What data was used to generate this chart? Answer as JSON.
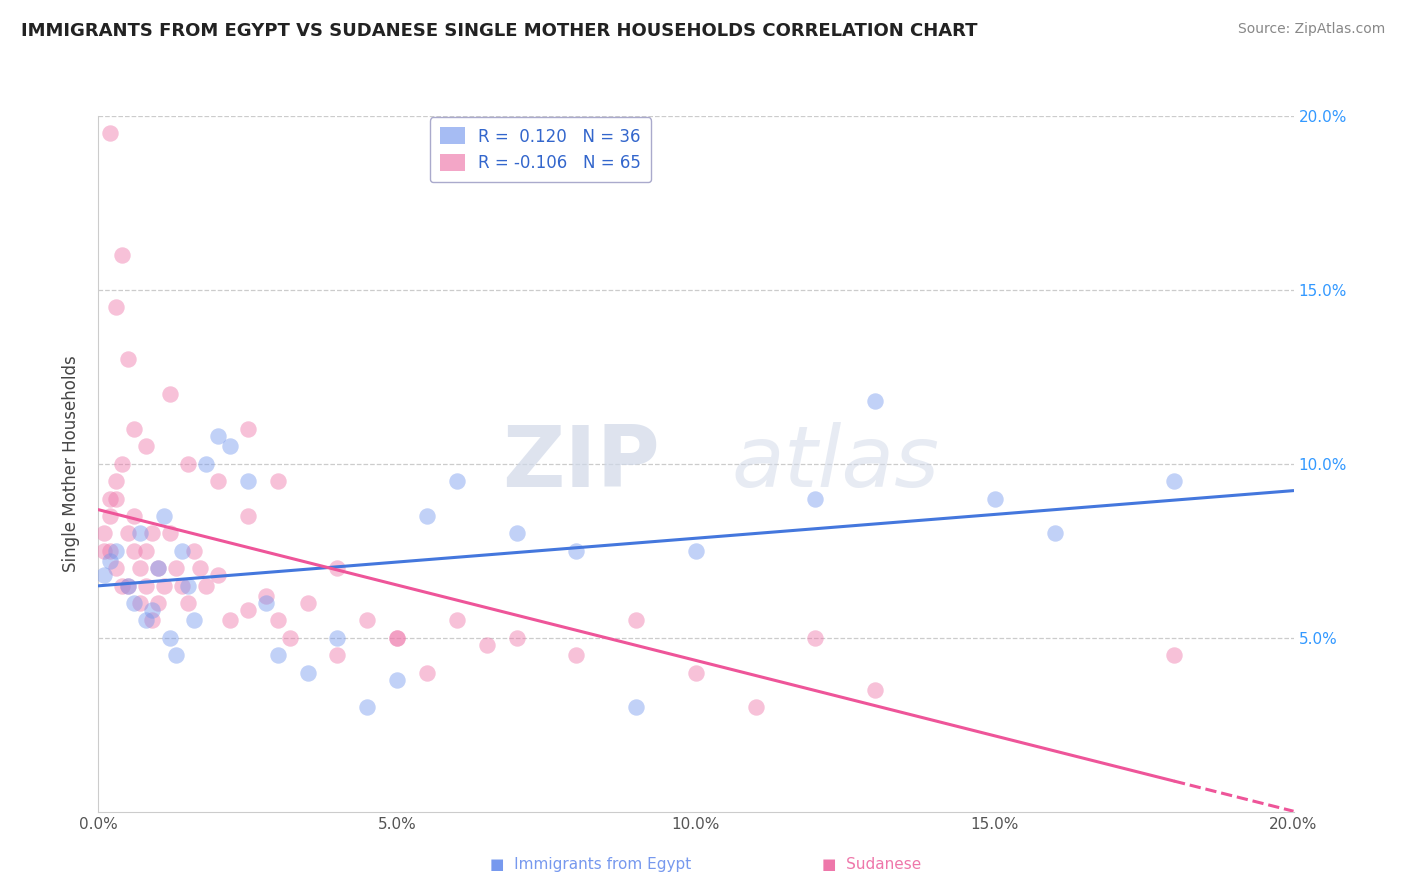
{
  "title": "IMMIGRANTS FROM EGYPT VS SUDANESE SINGLE MOTHER HOUSEHOLDS CORRELATION CHART",
  "source": "Source: ZipAtlas.com",
  "ylabel": "Single Mother Households",
  "egypt_color": "#7799ee",
  "sudan_color": "#ee77aa",
  "egypt_line_color": "#4477dd",
  "sudan_line_color": "#ee5599",
  "watermark_zip": "ZIP",
  "watermark_atlas": "atlas",
  "egypt_R": "0.120",
  "egypt_N": "36",
  "sudan_R": "-0.106",
  "sudan_N": "65",
  "egypt_x": [
    0.001,
    0.002,
    0.003,
    0.005,
    0.006,
    0.007,
    0.008,
    0.009,
    0.01,
    0.011,
    0.012,
    0.013,
    0.014,
    0.015,
    0.016,
    0.018,
    0.02,
    0.022,
    0.025,
    0.028,
    0.03,
    0.035,
    0.04,
    0.045,
    0.05,
    0.055,
    0.06,
    0.07,
    0.08,
    0.09,
    0.1,
    0.12,
    0.13,
    0.15,
    0.16,
    0.18
  ],
  "egypt_y": [
    0.068,
    0.072,
    0.075,
    0.065,
    0.06,
    0.08,
    0.055,
    0.058,
    0.07,
    0.085,
    0.05,
    0.045,
    0.075,
    0.065,
    0.055,
    0.1,
    0.108,
    0.105,
    0.095,
    0.06,
    0.045,
    0.04,
    0.05,
    0.03,
    0.038,
    0.085,
    0.095,
    0.08,
    0.075,
    0.03,
    0.075,
    0.09,
    0.118,
    0.09,
    0.08,
    0.095
  ],
  "sudan_x": [
    0.001,
    0.001,
    0.002,
    0.002,
    0.002,
    0.003,
    0.003,
    0.003,
    0.004,
    0.004,
    0.005,
    0.005,
    0.006,
    0.006,
    0.007,
    0.007,
    0.008,
    0.008,
    0.009,
    0.009,
    0.01,
    0.01,
    0.011,
    0.012,
    0.013,
    0.014,
    0.015,
    0.016,
    0.017,
    0.018,
    0.02,
    0.022,
    0.025,
    0.028,
    0.03,
    0.032,
    0.035,
    0.04,
    0.045,
    0.05,
    0.055,
    0.06,
    0.065,
    0.07,
    0.08,
    0.09,
    0.1,
    0.11,
    0.12,
    0.13,
    0.002,
    0.004,
    0.006,
    0.008,
    0.012,
    0.02,
    0.025,
    0.03,
    0.04,
    0.05,
    0.003,
    0.005,
    0.015,
    0.025,
    0.18
  ],
  "sudan_y": [
    0.08,
    0.075,
    0.075,
    0.085,
    0.09,
    0.09,
    0.095,
    0.07,
    0.065,
    0.1,
    0.065,
    0.08,
    0.075,
    0.085,
    0.06,
    0.07,
    0.065,
    0.075,
    0.055,
    0.08,
    0.06,
    0.07,
    0.065,
    0.08,
    0.07,
    0.065,
    0.06,
    0.075,
    0.07,
    0.065,
    0.068,
    0.055,
    0.058,
    0.062,
    0.055,
    0.05,
    0.06,
    0.045,
    0.055,
    0.05,
    0.04,
    0.055,
    0.048,
    0.05,
    0.045,
    0.055,
    0.04,
    0.03,
    0.05,
    0.035,
    0.195,
    0.16,
    0.11,
    0.105,
    0.12,
    0.095,
    0.11,
    0.095,
    0.07,
    0.05,
    0.145,
    0.13,
    0.1,
    0.085,
    0.045
  ],
  "legend_text_color": "#3366cc",
  "right_axis_color": "#3399ff",
  "x_ticks": [
    0.0,
    0.05,
    0.1,
    0.15,
    0.2
  ],
  "x_tick_labels": [
    "0.0%",
    "5.0%",
    "10.0%",
    "15.0%",
    "20.0%"
  ],
  "y_ticks": [
    0.05,
    0.1,
    0.15,
    0.2
  ],
  "y_tick_labels": [
    "5.0%",
    "10.0%",
    "15.0%",
    "20.0%"
  ]
}
